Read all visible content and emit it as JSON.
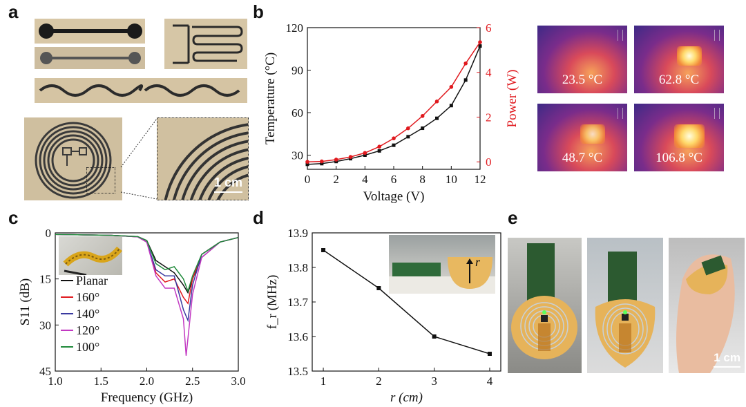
{
  "panels": {
    "a": "a",
    "b": "b",
    "c": "c",
    "d": "d",
    "e": "e"
  },
  "scale_bars": {
    "a": "1 cm",
    "e": "1 cm"
  },
  "thermal_images": [
    "23.5 °C",
    "62.8 °C",
    "48.7 °C",
    "106.8 °C"
  ],
  "chart_data": [
    {
      "id": "b",
      "type": "line",
      "xlabel": "Voltage (V)",
      "ylabel": "Temperature (°C)",
      "y2label": "Power (W)",
      "xlim": [
        0,
        12
      ],
      "ylim": [
        20,
        120
      ],
      "y2lim": [
        -0.333,
        6
      ],
      "x_ticks": [
        "0",
        "2",
        "4",
        "6",
        "8",
        "10",
        "12"
      ],
      "y_ticks": [
        "30",
        "60",
        "90",
        "120"
      ],
      "y2_ticks": [
        "0",
        "2",
        "4",
        "6"
      ],
      "colors": {
        "temperature": "#111111",
        "power": "#e0191e"
      },
      "series": [
        {
          "name": "Temperature",
          "axis": "left",
          "x": [
            0,
            1,
            2,
            3,
            4,
            5,
            6,
            7,
            8,
            9,
            10,
            11,
            12
          ],
          "values": [
            23.5,
            24,
            25.5,
            27.5,
            30,
            33,
            37,
            43,
            49,
            56,
            65,
            83,
            107
          ]
        },
        {
          "name": "Power",
          "axis": "right",
          "x": [
            0,
            1,
            2,
            3,
            4,
            5,
            6,
            7,
            8,
            9,
            10,
            11,
            12
          ],
          "values": [
            0,
            0.02,
            0.1,
            0.22,
            0.4,
            0.68,
            1.05,
            1.5,
            2.05,
            2.7,
            3.35,
            4.4,
            5.35
          ]
        }
      ]
    },
    {
      "id": "c",
      "type": "line",
      "xlabel": "Frequency (GHz)",
      "ylabel": "S11 (dB)",
      "xlim": [
        1.0,
        3.0
      ],
      "ylim": [
        0,
        45
      ],
      "x_ticks": [
        "1.0",
        "1.5",
        "2.0",
        "2.5",
        "3.0"
      ],
      "y_ticks": [
        "0",
        "15",
        "30",
        "45"
      ],
      "series": [
        {
          "name": "Planar",
          "color": "#111111",
          "x": [
            1.0,
            1.6,
            1.9,
            2.0,
            2.1,
            2.2,
            2.3,
            2.4,
            2.45,
            2.5,
            2.6,
            2.8,
            3.0
          ],
          "values": [
            0.5,
            0.8,
            1.2,
            2.5,
            9,
            11,
            13,
            17,
            19.5,
            15,
            8,
            3,
            1.5
          ]
        },
        {
          "name": "160°",
          "color": "#e0191e",
          "x": [
            1.0,
            1.6,
            1.9,
            2.0,
            2.1,
            2.2,
            2.3,
            2.4,
            2.45,
            2.5,
            2.6,
            2.8,
            3.0
          ],
          "values": [
            0.5,
            0.8,
            1.3,
            3,
            13,
            16,
            15,
            21,
            23,
            15,
            7,
            3,
            1.5
          ]
        },
        {
          "name": "140°",
          "color": "#3a3aa0",
          "x": [
            1.0,
            1.6,
            1.9,
            2.0,
            2.1,
            2.2,
            2.3,
            2.4,
            2.45,
            2.5,
            2.6,
            2.8,
            3.0
          ],
          "values": [
            0.5,
            0.8,
            1.3,
            3,
            12,
            14,
            14,
            25,
            28.5,
            17,
            7,
            3,
            1.5
          ]
        },
        {
          "name": "120°",
          "color": "#c238c2",
          "x": [
            1.0,
            1.6,
            1.9,
            2.0,
            2.1,
            2.2,
            2.3,
            2.4,
            2.43,
            2.5,
            2.6,
            2.8,
            3.0
          ],
          "values": [
            0.5,
            0.8,
            1.3,
            3,
            14,
            18,
            18,
            28,
            40,
            20,
            8,
            3,
            1.5
          ]
        },
        {
          "name": "100°",
          "color": "#1f8a3a",
          "x": [
            1.0,
            1.6,
            1.9,
            2.0,
            2.1,
            2.2,
            2.3,
            2.4,
            2.45,
            2.5,
            2.6,
            2.8,
            3.0
          ],
          "values": [
            0.5,
            0.8,
            1.2,
            2.5,
            10,
            12,
            11,
            15,
            19,
            14,
            7,
            3,
            1.5
          ]
        }
      ]
    },
    {
      "id": "d",
      "type": "line",
      "xlabel": "r (cm)",
      "ylabel": "f_r (MHz)",
      "xlim": [
        0.8,
        4.2
      ],
      "ylim": [
        13.5,
        13.9
      ],
      "x_ticks": [
        "1",
        "2",
        "3",
        "4"
      ],
      "y_ticks": [
        "13.5",
        "13.6",
        "13.7",
        "13.8",
        "13.9"
      ],
      "inset_label": "r",
      "series": [
        {
          "name": "fr",
          "x": [
            1,
            2,
            3,
            4
          ],
          "values": [
            13.85,
            13.74,
            13.6,
            13.55
          ]
        }
      ]
    }
  ]
}
